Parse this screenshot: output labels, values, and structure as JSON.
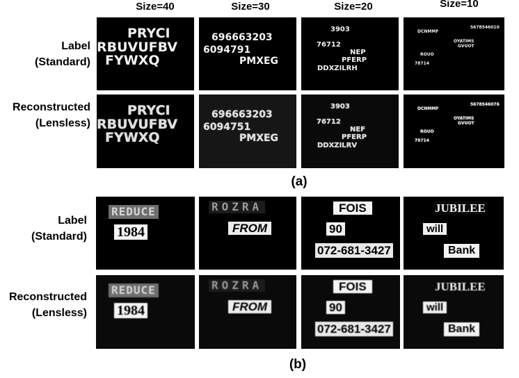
{
  "figure": {
    "part_a": {
      "caption": "(a)",
      "column_headers": [
        "Size=40",
        "Size=30",
        "Size=20",
        "Size=10"
      ],
      "row_labels": [
        "Label\n(Standard)",
        "Reconstructed\n(Lensless)"
      ],
      "label_texts": [
        [
          "PRYCI",
          "RBUVUFBV",
          "FYWXQ"
        ],
        [
          "696663203",
          "6094791",
          "PMXEG"
        ],
        [
          "3903",
          "76712",
          "NEP",
          "PFERP",
          "DDXZILRH"
        ],
        [
          "DCNMMF",
          "5678546010",
          "OYATIMS",
          "GVUOT",
          "ROUO",
          "78714"
        ]
      ],
      "recon_texts": [
        [
          "PRYCI",
          "RBUVUFBV",
          "FYWXQ"
        ],
        [
          "696663203",
          "6094751",
          "PMXEG"
        ],
        [
          "3903",
          "76712",
          "NEF",
          "PFERP",
          "DDXZILRV"
        ],
        [
          "DCNMMF",
          "5678546076",
          "OYATIMS",
          "GVUOT",
          "ROUO",
          "79714"
        ]
      ]
    },
    "part_b": {
      "caption": "(b)",
      "row_labels": [
        "Label\n(Standard)",
        "Reconstructed\n(Lensless)"
      ],
      "label_texts": [
        [
          "REDUCE",
          "1984"
        ],
        [
          "ROZRA",
          "FROM"
        ],
        [
          "FOIS",
          "90",
          "072-681-3427"
        ],
        [
          "JUBILEE",
          "will",
          "Bank"
        ]
      ],
      "recon_texts": [
        [
          "REDUCE",
          "1984"
        ],
        [
          "ROZRA",
          "FROM"
        ],
        [
          "FOIS",
          "90",
          "072-681-3427"
        ],
        [
          "JUBILEE",
          "will",
          "Bank"
        ]
      ]
    }
  }
}
